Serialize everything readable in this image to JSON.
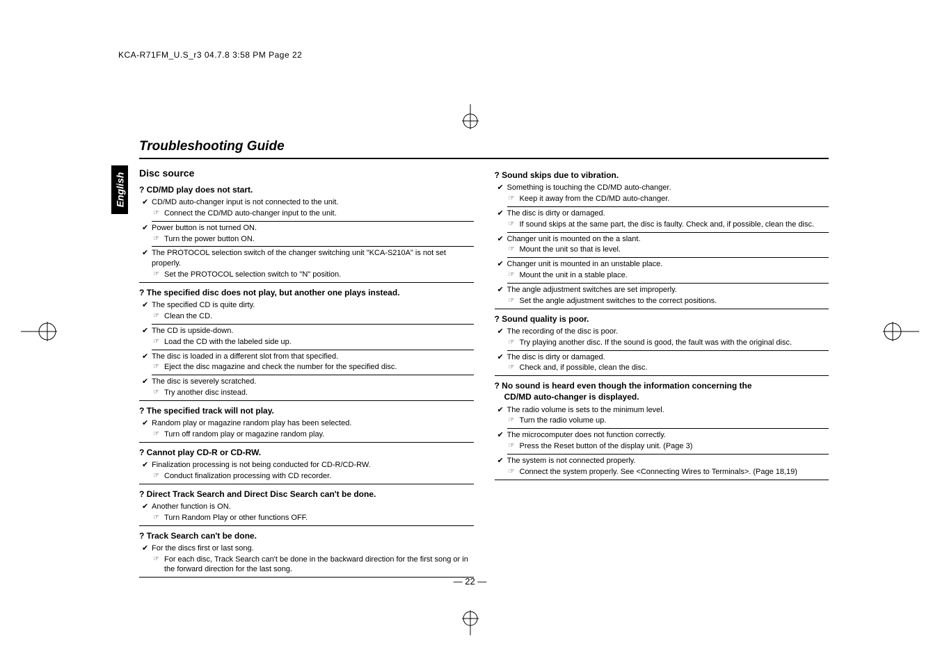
{
  "header": "KCA-R71FM_U.S_r3  04.7.8  3:58 PM  Page 22",
  "title": "Troubleshooting Guide",
  "side_tab": "English",
  "footer": "— 22 —",
  "left": {
    "section": "Disc source",
    "groups": [
      {
        "q": "CD/MD play does not start.",
        "items": [
          {
            "c": "CD/MD auto-changer input is not connected to the unit.",
            "f": "Connect the CD/MD auto-changer input to the unit."
          },
          {
            "c": "Power button is not turned ON.",
            "f": "Turn the power button ON."
          },
          {
            "c": "The PROTOCOL selection switch of the changer switching unit \"KCA-S210A\" is not set properly.",
            "f": "Set the PROTOCOL selection switch to \"N\" position."
          }
        ]
      },
      {
        "q": "The specified disc does not play, but another one plays instead.",
        "items": [
          {
            "c": "The specified CD is quite dirty.",
            "f": "Clean the CD."
          },
          {
            "c": "The CD is upside-down.",
            "f": "Load the CD with the labeled side up."
          },
          {
            "c": "The disc is loaded in a different slot from that specified.",
            "f": "Eject the disc magazine and check the number for the specified disc."
          },
          {
            "c": "The disc is severely scratched.",
            "f": "Try another disc instead."
          }
        ]
      },
      {
        "q": "The specified track will not play.",
        "items": [
          {
            "c": "Random play or magazine random play has been selected.",
            "f": "Turn off random play or magazine random play."
          }
        ]
      },
      {
        "q": "Cannot play CD-R or CD-RW.",
        "items": [
          {
            "c": "Finalization processing is not being conducted for CD-R/CD-RW.",
            "f": "Conduct finalization processing with CD recorder."
          }
        ]
      },
      {
        "q": "Direct Track Search and Direct Disc Search can't be done.",
        "items": [
          {
            "c": "Another function is ON.",
            "f": "Turn Random Play or other functions OFF."
          }
        ]
      },
      {
        "q": "Track Search can't be done.",
        "items": [
          {
            "c": "For the discs first or last song.",
            "f": "For each disc, Track Search can't be done in the backward direction for the first song or in the forward direction for the last song."
          }
        ]
      }
    ]
  },
  "right": {
    "groups": [
      {
        "q": "Sound skips due to vibration.",
        "items": [
          {
            "c": "Something is touching the CD/MD auto-changer.",
            "f": "Keep it away from the CD/MD auto-changer."
          },
          {
            "c": "The disc is dirty or damaged.",
            "f": "If sound skips at the same part, the disc is faulty.  Check and, if possible, clean the disc."
          },
          {
            "c": "Changer unit is mounted on the a slant.",
            "f": "Mount the unit so that is level."
          },
          {
            "c": "Changer unit is mounted in an unstable place.",
            "f": "Mount the unit in a stable place."
          },
          {
            "c": "The angle adjustment switches are set improperly.",
            "f": "Set the angle adjustment switches to the correct positions."
          }
        ]
      },
      {
        "q": "Sound quality is poor.",
        "items": [
          {
            "c": "The recording of the disc is poor.",
            "f": "Try playing another disc.  If the sound is good, the fault was with the original disc."
          },
          {
            "c": "The disc is dirty or damaged.",
            "f": "Check and, if possible, clean the disc."
          }
        ]
      },
      {
        "q": "No sound is heard even though the information concerning the CD/MD auto-changer is displayed.",
        "q2": "CD/MD auto-changer is displayed.",
        "qpart1": "No sound is heard even though the information concerning the",
        "items": [
          {
            "c": "The radio volume is sets to the minimum level.",
            "f": "Turn the radio volume up."
          },
          {
            "c": "The microcomputer does not function correctly.",
            "f": "Press the Reset button of the display unit. (Page 3)"
          },
          {
            "c": "The system is not connected properly.",
            "f": "Connect the system properly. See <Connecting Wires to Terminals>. (Page 18,19)"
          }
        ]
      }
    ]
  }
}
